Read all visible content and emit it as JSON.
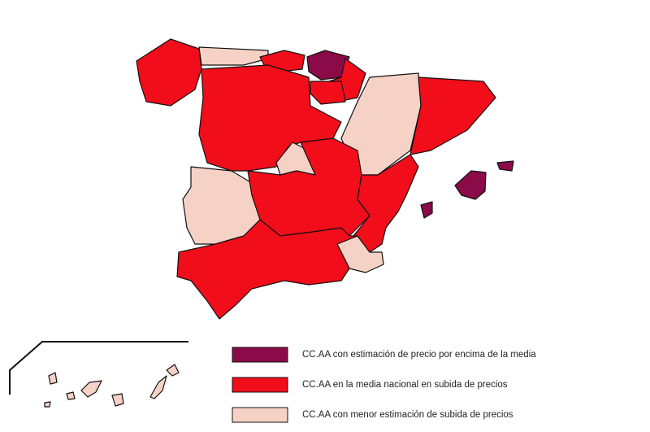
{
  "legend": {
    "items": [
      {
        "label": "CC.AA con estimación de precio por encima de la media",
        "color": "#8b0a48"
      },
      {
        "label": "CC.AA en la media nacional en subida de precios",
        "color": "#f20d1a"
      },
      {
        "label": "CC.AA con menor estimación de subida de precios",
        "color": "#f6d2c6"
      }
    ]
  }
}
